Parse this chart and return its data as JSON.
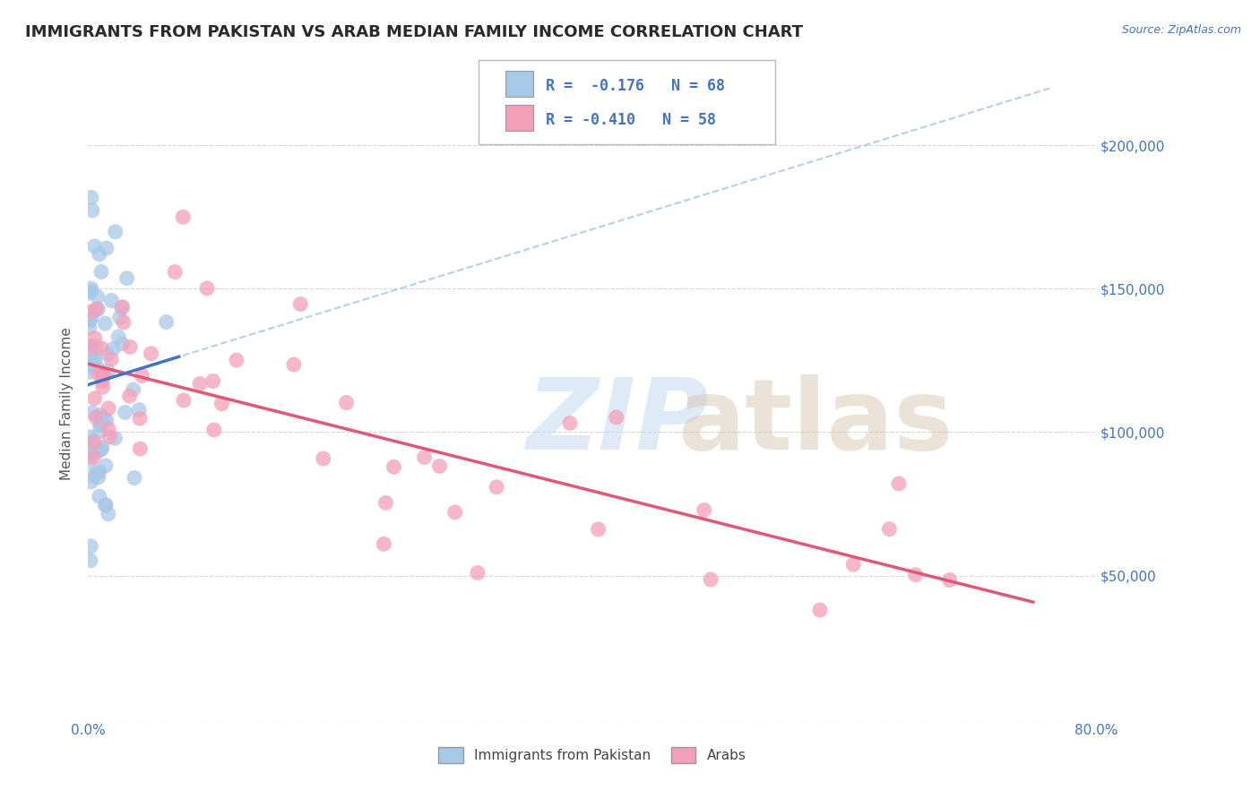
{
  "title": "IMMIGRANTS FROM PAKISTAN VS ARAB MEDIAN FAMILY INCOME CORRELATION CHART",
  "source": "Source: ZipAtlas.com",
  "ylabel": "Median Family Income",
  "xlim": [
    0.0,
    0.8
  ],
  "ylim": [
    0,
    220000
  ],
  "yticks": [
    0,
    50000,
    100000,
    150000,
    200000
  ],
  "ytick_labels": [
    "",
    "$50,000",
    "$100,000",
    "$150,000",
    "$200,000"
  ],
  "xticks": [
    0.0,
    0.2,
    0.4,
    0.6,
    0.8
  ],
  "xtick_labels": [
    "0.0%",
    "",
    "",
    "",
    "80.0%"
  ],
  "background_color": "#ffffff",
  "grid_color": "#cccccc",
  "axis_color": "#4472c4",
  "legend_R1": "R =  -0.176",
  "legend_N1": "N = 68",
  "legend_R2": "R = -0.410",
  "legend_N2": "N = 58",
  "series1_color": "#a8c8e8",
  "series2_color": "#f4a0b8",
  "line1_color": "#4472c4",
  "line2_color": "#e05878",
  "dashed_color": "#a0c4e8",
  "series1_label": "Immigrants from Pakistan",
  "series2_label": "Arabs",
  "title_fontsize": 13,
  "label_fontsize": 11,
  "tick_fontsize": 11,
  "legend_fontsize": 12,
  "pak_seed": 101,
  "arab_seed": 202
}
